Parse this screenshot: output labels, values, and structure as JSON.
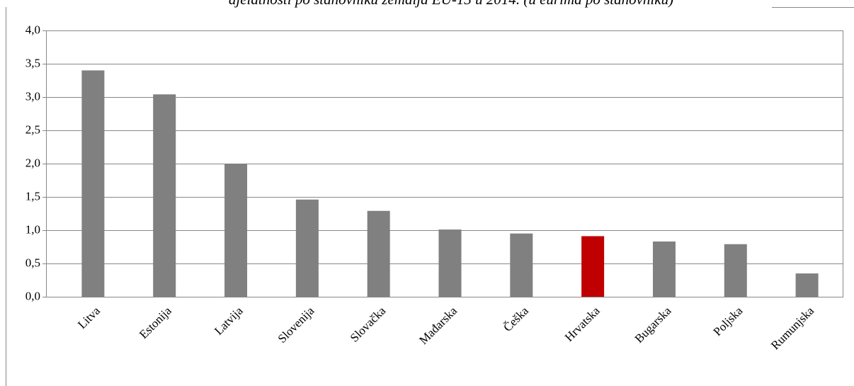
{
  "chart_data": {
    "type": "bar",
    "title": "djelatnosti po stanovniku zemalja EU-13 u 2014. (u eurima po stanovniku)",
    "categories": [
      "Litva",
      "Estonija",
      "Latvija",
      "Slovenija",
      "Slovačka",
      "Mađarska",
      "Češka",
      "Hrvatska",
      "Bugarska",
      "Poljska",
      "Rumunjska"
    ],
    "values": [
      3.4,
      3.04,
      2.0,
      1.46,
      1.29,
      1.01,
      0.95,
      0.91,
      0.83,
      0.79,
      0.35
    ],
    "colors": [
      "#808080",
      "#808080",
      "#808080",
      "#808080",
      "#808080",
      "#808080",
      "#808080",
      "#c00000",
      "#808080",
      "#808080",
      "#808080"
    ],
    "ylim": [
      0,
      4
    ],
    "yticks": [
      {
        "value": 0,
        "label": "0,0"
      },
      {
        "value": 0.5,
        "label": "0,5"
      },
      {
        "value": 1,
        "label": "1,0"
      },
      {
        "value": 1.5,
        "label": "1,5"
      },
      {
        "value": 2,
        "label": "2,0"
      },
      {
        "value": 2.5,
        "label": "2,5"
      },
      {
        "value": 3,
        "label": "3,0"
      },
      {
        "value": 3.5,
        "label": "3,5"
      },
      {
        "value": 4,
        "label": "4,0"
      }
    ],
    "grid": true
  }
}
